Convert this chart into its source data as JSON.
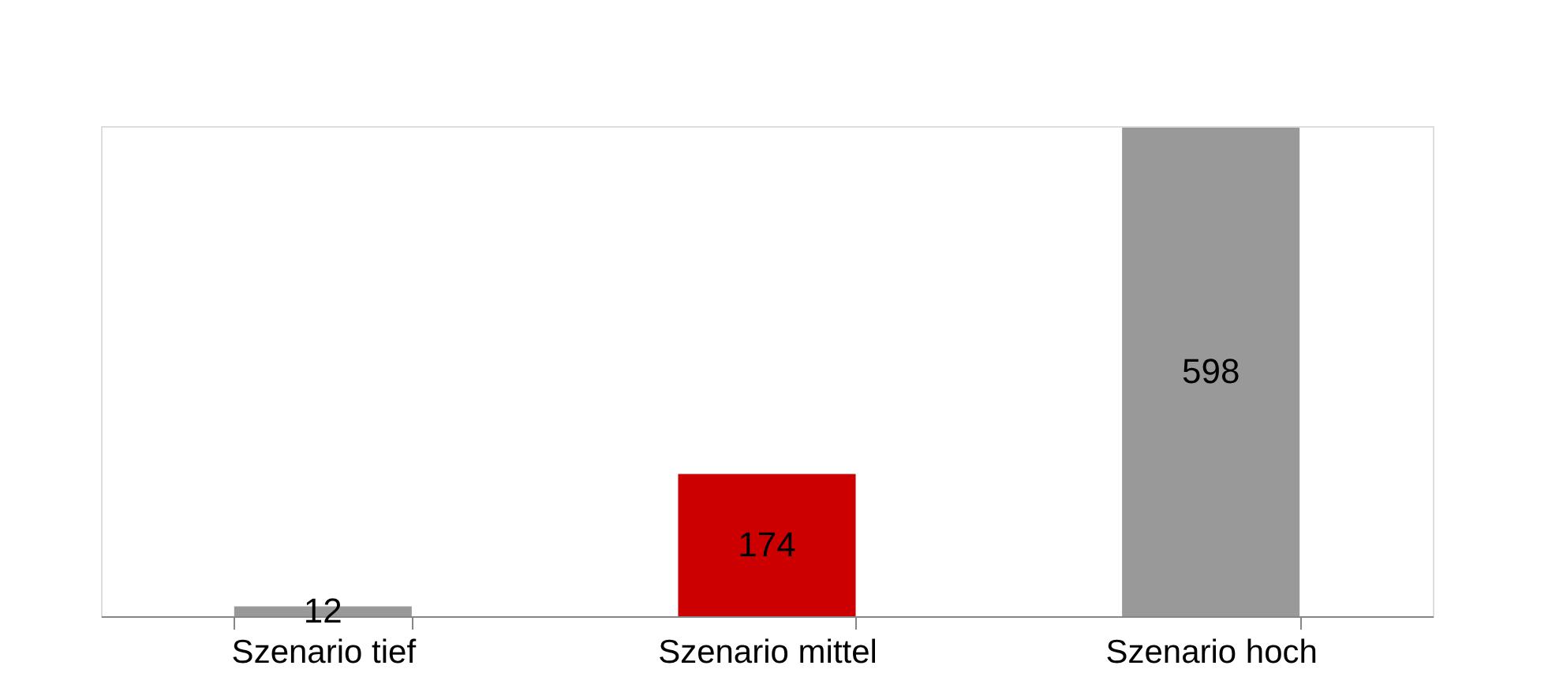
{
  "chart_data": {
    "type": "bar",
    "categories": [
      "Szenario tief",
      "Szenario mittel",
      "Szenario hoch"
    ],
    "values": [
      12,
      174,
      598
    ],
    "colors": [
      "#999999",
      "#cc0000",
      "#999999"
    ],
    "data_labels": true
  }
}
